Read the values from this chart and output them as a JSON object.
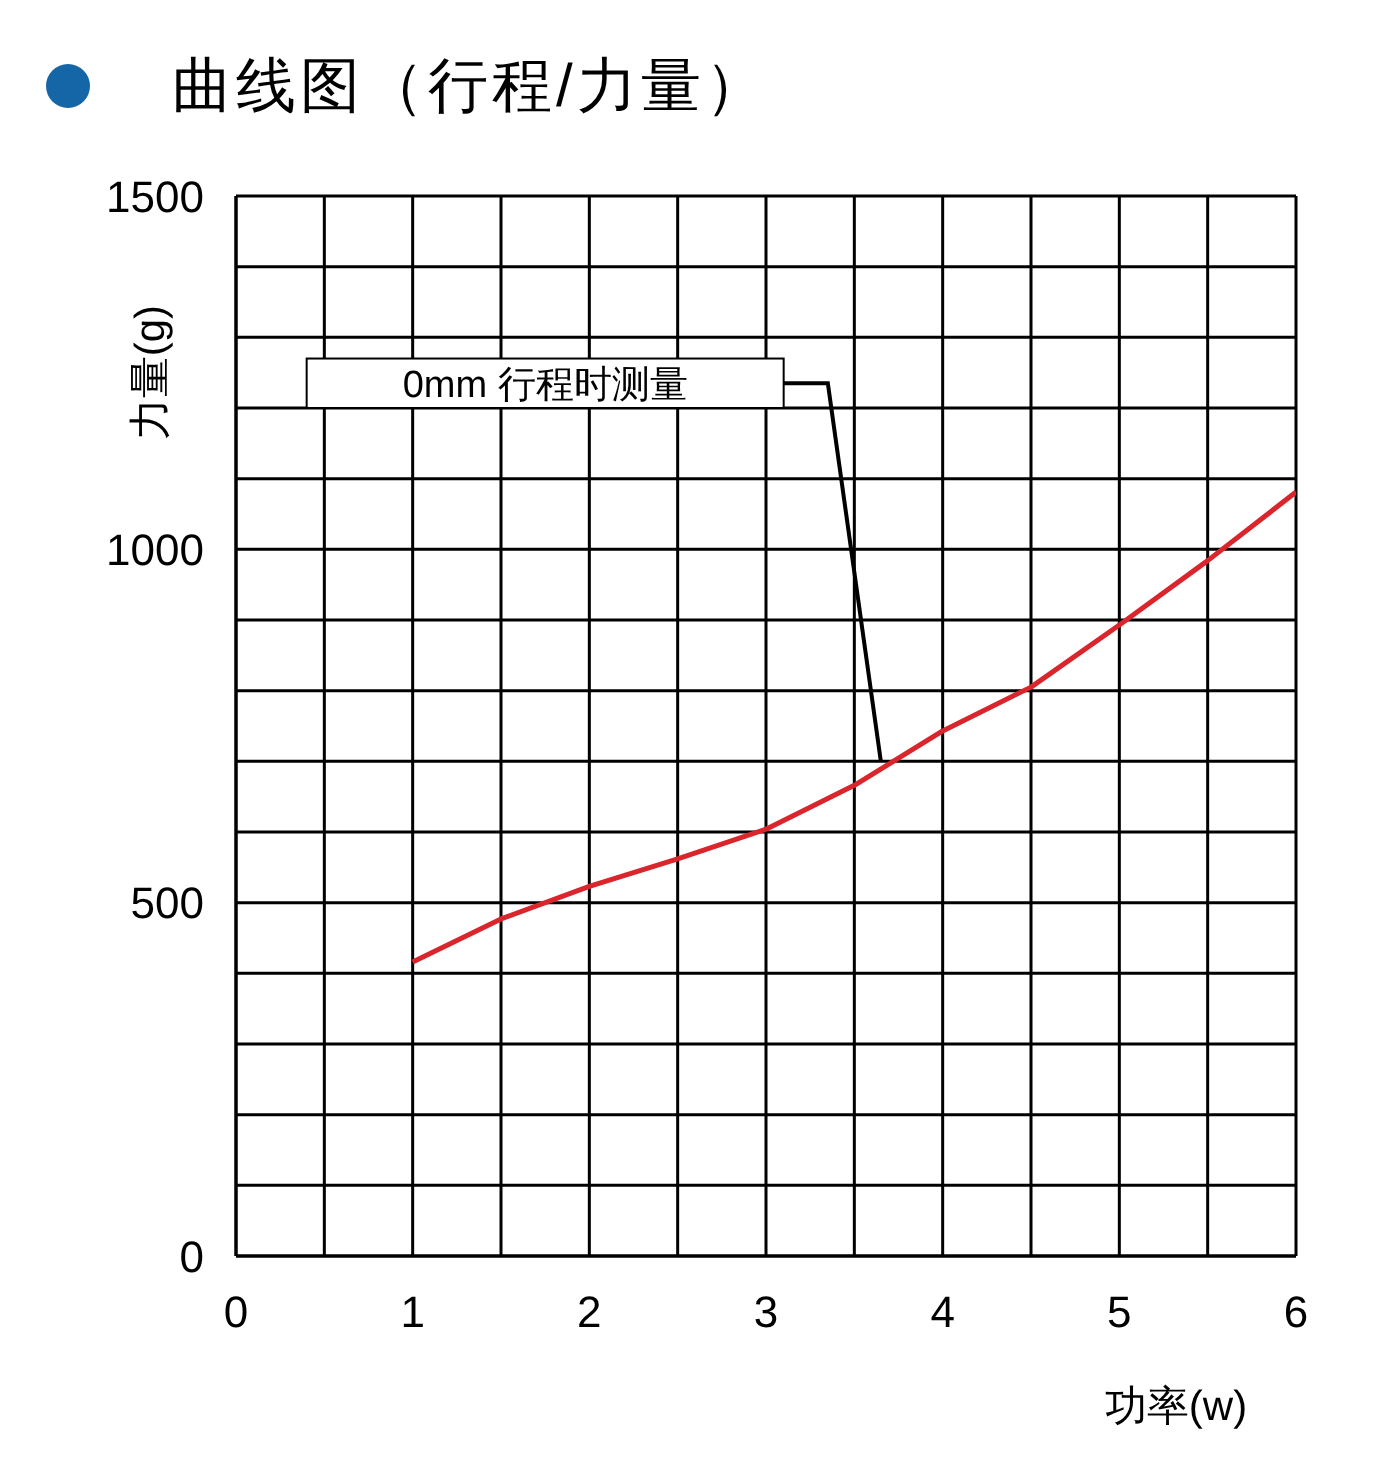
{
  "chart_data": {
    "type": "line",
    "title": "曲线图（行程/力量）",
    "xlabel": "功率(w)",
    "ylabel": "力量(g)",
    "x": [
      1,
      1.5,
      2,
      2.5,
      3,
      3.5,
      4,
      4.5,
      5,
      5.5,
      6
    ],
    "series": [
      {
        "color": "#d9252b",
        "values": [
          416,
          477,
          523,
          562,
          604,
          666,
          743,
          805,
          893,
          984,
          1081
        ]
      }
    ],
    "xlim": [
      0,
      6
    ],
    "xticks": [
      0,
      {
        "value": 0.5,
        "label": null
      },
      1,
      {
        "value": 1.5,
        "label": null
      },
      2,
      {
        "value": 2.5,
        "label": null
      },
      3,
      {
        "value": 3.5,
        "label": null
      },
      4,
      {
        "value": 4.5,
        "label": null
      },
      5,
      {
        "value": 5.5,
        "label": null
      },
      6
    ],
    "ylim": [
      0,
      1500
    ],
    "yticks": [
      0,
      {
        "value": 100,
        "label": null
      },
      {
        "value": 200,
        "label": null
      },
      {
        "value": 300,
        "label": null
      },
      {
        "value": 400,
        "label": null
      },
      500,
      {
        "value": 600,
        "label": null
      },
      {
        "value": 700,
        "label": null
      },
      {
        "value": 800,
        "label": null
      },
      {
        "value": 900,
        "label": null
      },
      1000,
      {
        "value": 1100,
        "label": null
      },
      {
        "value": 1200,
        "label": null
      },
      {
        "value": 1300,
        "label": null
      },
      {
        "value": 1400,
        "label": null
      },
      1500
    ],
    "grid": true,
    "marker": "none",
    "line_style": "solid",
    "annotations": [
      "0mm 行程时测量"
    ]
  }
}
